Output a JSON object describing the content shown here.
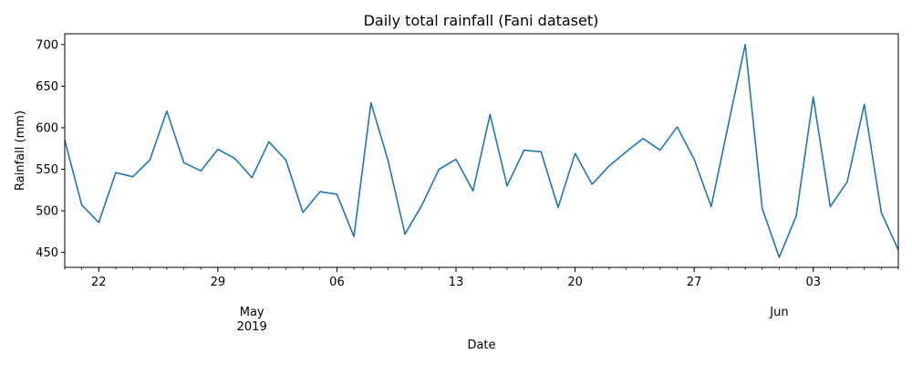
{
  "chart_data": {
    "type": "line",
    "title": "Daily total rainfall (Fani dataset)",
    "xlabel": "Date",
    "ylabel": "Rainfall (mm)",
    "x_start": "2019-04-20",
    "x_end": "2019-06-08",
    "ylim": [
      432,
      713
    ],
    "y_ticks": [
      450,
      500,
      550,
      600,
      650,
      700
    ],
    "x_ticks": [
      {
        "date": "2019-04-22",
        "label": "22"
      },
      {
        "date": "2019-04-29",
        "label": "29"
      },
      {
        "date": "2019-05-06",
        "label": "06"
      },
      {
        "date": "2019-05-13",
        "label": "13"
      },
      {
        "date": "2019-05-20",
        "label": "20"
      },
      {
        "date": "2019-05-27",
        "label": "27"
      },
      {
        "date": "2019-06-03",
        "label": "03"
      }
    ],
    "month_labels": [
      {
        "date": "2019-05-01",
        "label": "May",
        "sublabel": "2019"
      },
      {
        "date": "2019-06-01",
        "label": "Jun",
        "sublabel": ""
      }
    ],
    "grid": false,
    "color": "#1f77b4",
    "series": [
      {
        "values": [
          585,
          507,
          486,
          546,
          541,
          561,
          620,
          558,
          548,
          574,
          563,
          540,
          583,
          561,
          498,
          523,
          520,
          469,
          630,
          561,
          472,
          507,
          550,
          562,
          524,
          616,
          530,
          573,
          571,
          504,
          569,
          532,
          554,
          571,
          587,
          573,
          601,
          562,
          505,
          603,
          700,
          503,
          444,
          494,
          637,
          505,
          535,
          628,
          498,
          453
        ]
      }
    ]
  }
}
